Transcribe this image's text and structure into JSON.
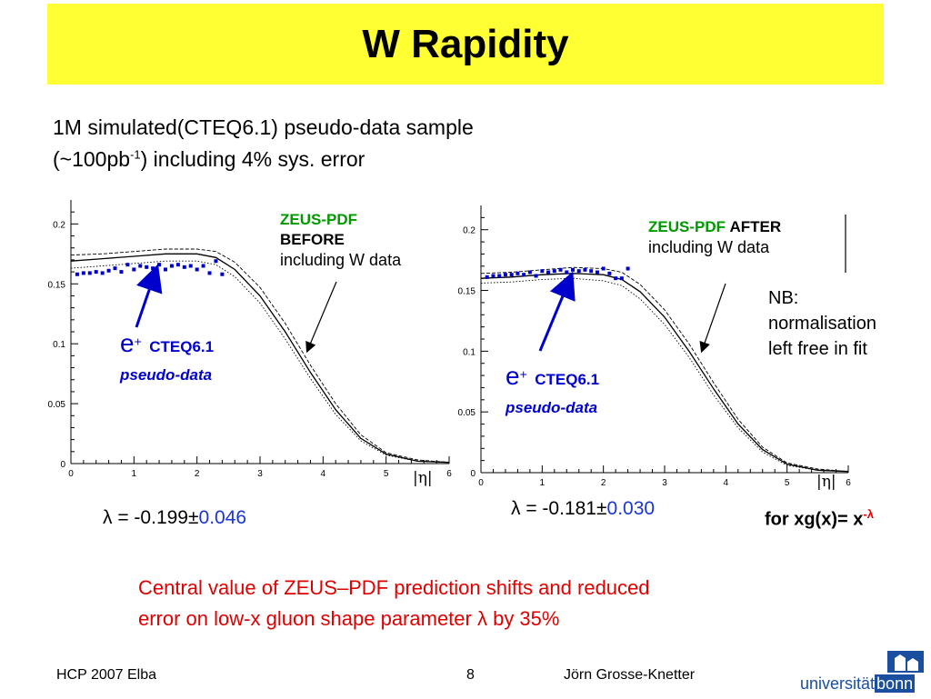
{
  "slide": {
    "title": "W Rapidity",
    "subtitle_line1": "1M simulated(CTEQ6.1) pseudo-data sample",
    "subtitle_line2_pre": "(~100pb",
    "subtitle_line2_sup": "-1",
    "subtitle_line2_post": ") including 4% sys. error",
    "nb_note": [
      "NB:",
      "normalisation",
      "left free in fit"
    ],
    "formula_text": "for xg(x)= x",
    "formula_sup": "-λ",
    "conclusion_line1": "Central value of ZEUS–PDF prediction shifts and reduced",
    "conclusion_line2": "error on low-x gluon shape parameter λ by 35%",
    "footer_left": "HCP 2007 Elba",
    "footer_page": "8",
    "footer_author": "Jörn Grosse-Knetter",
    "logo_text_plain": "universität",
    "logo_text_box": "bonn"
  },
  "plots": {
    "left": {
      "label_green": "ZEUS-PDF",
      "label_bold": "BEFORE",
      "label_line3": "including W data",
      "eplus": "e",
      "eplus_sup": "+",
      "cteq": "CTEQ6.1",
      "pseudo": "pseudo-data",
      "xaxis_label": "|η|",
      "lambda_prefix": "λ = -0.199±",
      "lambda_err": "0.046"
    },
    "right": {
      "label_green": "ZEUS-PDF",
      "label_bold": "AFTER",
      "label_line3": "including W data",
      "eplus": "e",
      "eplus_sup": "+",
      "cteq": "CTEQ6.1",
      "pseudo": "pseudo-data",
      "xaxis_label": "|η|",
      "lambda_prefix": "λ = -0.181±",
      "lambda_err": "0.030"
    }
  },
  "chart_data": [
    {
      "type": "line",
      "xlabel": "|η|",
      "ylabel": "",
      "xlim": [
        0,
        6
      ],
      "ylim": [
        0,
        0.22
      ],
      "x_ticks": [
        0,
        1,
        2,
        3,
        4,
        5,
        6
      ],
      "y_ticks": [
        0.05,
        0.1,
        0.15,
        0.2
      ],
      "tick_labels_x": [
        "0",
        "1",
        "2",
        "3",
        "4",
        "5",
        "6"
      ],
      "tick_labels_y": [
        "0.05",
        "0.1",
        "0.15",
        "0.2"
      ],
      "series": [
        {
          "name": "",
          "style": "solid",
          "x": [
            0,
            0.5,
            1,
            1.5,
            2,
            2.3,
            2.6,
            3,
            3.4,
            3.8,
            4.2,
            4.6,
            5,
            5.5,
            6
          ],
          "y": [
            0.169,
            0.171,
            0.173,
            0.175,
            0.175,
            0.172,
            0.162,
            0.14,
            0.11,
            0.076,
            0.045,
            0.021,
            0.008,
            0.002,
            0.001
          ]
        },
        {
          "name": "",
          "style": "dashed",
          "x": [
            0,
            0.5,
            1,
            1.5,
            2,
            2.3,
            2.6,
            3,
            3.4,
            3.8,
            4.2,
            4.6,
            5,
            5.5,
            6
          ],
          "y": [
            0.174,
            0.175,
            0.177,
            0.179,
            0.179,
            0.177,
            0.168,
            0.147,
            0.117,
            0.082,
            0.05,
            0.024,
            0.009,
            0.003,
            0.001
          ]
        },
        {
          "name": "",
          "style": "dotted",
          "x": [
            0,
            0.5,
            1,
            1.5,
            2,
            2.3,
            2.6,
            3,
            3.4,
            3.8,
            4.2,
            4.6,
            5,
            5.5,
            6
          ],
          "y": [
            0.163,
            0.165,
            0.167,
            0.169,
            0.169,
            0.166,
            0.156,
            0.134,
            0.104,
            0.071,
            0.041,
            0.019,
            0.007,
            0.002,
            0.001
          ]
        },
        {
          "name": "",
          "style": "points",
          "x": [
            0.1,
            0.2,
            0.3,
            0.4,
            0.5,
            0.6,
            0.7,
            0.8,
            0.9,
            1.0,
            1.1,
            1.2,
            1.3,
            1.4,
            1.5,
            1.6,
            1.7,
            1.8,
            1.9,
            2.0,
            2.1,
            2.2,
            2.3,
            2.4
          ],
          "y": [
            0.158,
            0.159,
            0.159,
            0.16,
            0.159,
            0.161,
            0.163,
            0.16,
            0.166,
            0.162,
            0.165,
            0.164,
            0.163,
            0.166,
            0.162,
            0.165,
            0.166,
            0.164,
            0.165,
            0.162,
            0.165,
            0.159,
            0.169,
            0.158
          ]
        }
      ]
    },
    {
      "type": "line",
      "xlabel": "|η|",
      "ylabel": "",
      "xlim": [
        0,
        6
      ],
      "ylim": [
        0,
        0.22
      ],
      "x_ticks": [
        0,
        1,
        2,
        3,
        4,
        5,
        6
      ],
      "y_ticks": [
        0.05,
        0.1,
        0.15,
        0.2
      ],
      "tick_labels_x": [
        "0",
        "1",
        "2",
        "3",
        "4",
        "5",
        "6"
      ],
      "tick_labels_y": [
        "0.05",
        "0.1",
        "0.15",
        "0.2"
      ],
      "series": [
        {
          "name": "",
          "style": "solid",
          "x": [
            0,
            0.5,
            1,
            1.5,
            2,
            2.3,
            2.6,
            3,
            3.4,
            3.8,
            4.2,
            4.6,
            5,
            5.5,
            6
          ],
          "y": [
            0.16,
            0.161,
            0.163,
            0.164,
            0.163,
            0.159,
            0.149,
            0.128,
            0.1,
            0.069,
            0.04,
            0.019,
            0.007,
            0.002,
            0.001
          ]
        },
        {
          "name": "",
          "style": "dashed",
          "x": [
            0,
            0.5,
            1,
            1.5,
            2,
            2.3,
            2.6,
            3,
            3.4,
            3.8,
            4.2,
            4.6,
            5,
            5.5,
            6
          ],
          "y": [
            0.164,
            0.165,
            0.167,
            0.169,
            0.168,
            0.165,
            0.155,
            0.134,
            0.106,
            0.074,
            0.044,
            0.021,
            0.008,
            0.003,
            0.001
          ]
        },
        {
          "name": "",
          "style": "dotted",
          "x": [
            0,
            0.5,
            1,
            1.5,
            2,
            2.3,
            2.6,
            3,
            3.4,
            3.8,
            4.2,
            4.6,
            5,
            5.5,
            6
          ],
          "y": [
            0.156,
            0.157,
            0.159,
            0.16,
            0.158,
            0.154,
            0.143,
            0.122,
            0.095,
            0.064,
            0.037,
            0.017,
            0.006,
            0.002,
            0.001
          ]
        },
        {
          "name": "",
          "style": "points",
          "x": [
            0.1,
            0.2,
            0.3,
            0.4,
            0.5,
            0.6,
            0.7,
            0.8,
            0.9,
            1.0,
            1.1,
            1.2,
            1.3,
            1.4,
            1.5,
            1.6,
            1.7,
            1.8,
            1.9,
            2.0,
            2.1,
            2.2,
            2.3,
            2.4
          ],
          "y": [
            0.161,
            0.162,
            0.162,
            0.163,
            0.163,
            0.164,
            0.163,
            0.165,
            0.162,
            0.166,
            0.165,
            0.166,
            0.167,
            0.165,
            0.167,
            0.166,
            0.167,
            0.166,
            0.165,
            0.168,
            0.164,
            0.16,
            0.16,
            0.168
          ]
        }
      ]
    }
  ]
}
